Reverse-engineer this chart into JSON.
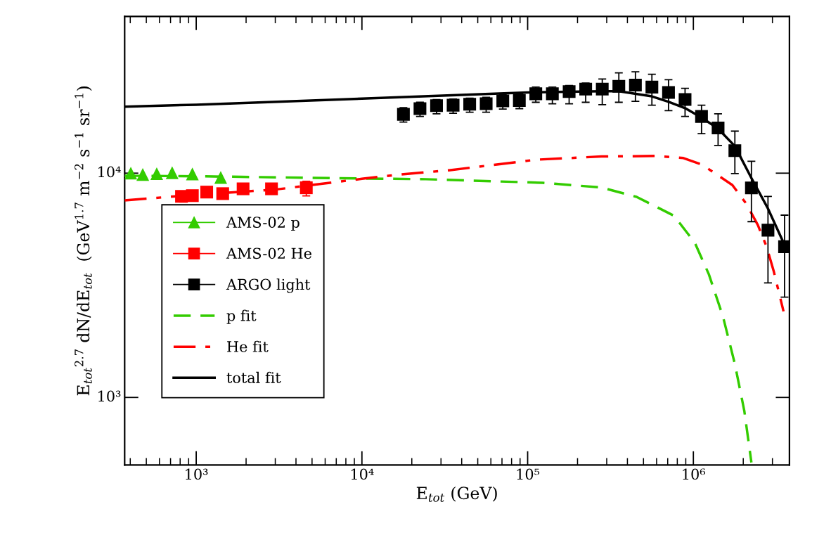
{
  "chart_data": {
    "type": "scatter",
    "xlabel": "E$_{tot}$ (GeV)",
    "ylabel": "E$_{tot}$$^{2.7}$ dN/dE$_{tot}$  (GeV$^{1.7}$ m$^{−2}$ s$^{−1}$ sr$^{−1}$)",
    "log": "xy",
    "xlim": [
      370,
      3800000
    ],
    "ylim": [
      500,
      50000
    ],
    "xticks": [
      {
        "value": 1000,
        "label": "10³"
      },
      {
        "value": 10000,
        "label": "10⁴"
      },
      {
        "value": 100000,
        "label": "10⁵"
      },
      {
        "value": 1000000,
        "label": "10⁶"
      }
    ],
    "yticks": [
      {
        "value": 1000,
        "label": "10³"
      },
      {
        "value": 10000,
        "label": "10⁴"
      }
    ],
    "grid": false,
    "legend": "center left",
    "series": [
      {
        "name": "AMS-02 p",
        "marker": "triangle",
        "color": "#33cc00",
        "x": [
          403,
          476,
          578,
          716,
          948,
          1406
        ],
        "values": [
          10000,
          9870,
          9950,
          10050,
          9920,
          9570
        ]
      },
      {
        "name": "AMS-02 He",
        "marker": "square",
        "color": "#ff0000",
        "x": [
          815,
          948,
          1157,
          1445,
          1918,
          2847,
          4617
        ],
        "values": [
          7880,
          7940,
          8235,
          8105,
          8515,
          8515,
          8607
        ],
        "errors": [
          null,
          null,
          null,
          null,
          null,
          null,
          [
            7920,
            9200
          ]
        ]
      },
      {
        "name": "ARGO light",
        "marker": "square",
        "color": "#000000",
        "x": [
          17800,
          22400,
          28200,
          35500,
          44700,
          56200,
          70800,
          89100,
          112000,
          141000,
          178000,
          224000,
          282000,
          355000,
          447000,
          562000,
          708000,
          891000,
          1120000,
          1410000,
          1780000,
          2240000,
          2820000,
          3550000
        ],
        "values": [
          18300,
          19400,
          20000,
          20100,
          20300,
          20400,
          21000,
          21100,
          22600,
          22600,
          23100,
          23700,
          23700,
          24400,
          24700,
          24200,
          22900,
          21300,
          17900,
          15900,
          12600,
          8600,
          5570,
          4700
        ],
        "errors": [
          [
            16900,
            19600
          ],
          [
            17900,
            20700
          ],
          [
            18400,
            21300
          ],
          [
            18500,
            21400
          ],
          [
            18700,
            21600
          ],
          [
            18700,
            21800
          ],
          [
            19300,
            22400
          ],
          [
            19400,
            22500
          ],
          [
            20700,
            24200
          ],
          [
            20400,
            24200
          ],
          [
            20400,
            24600
          ],
          [
            20700,
            25200
          ],
          [
            20200,
            26300
          ],
          [
            20700,
            28000
          ],
          [
            20900,
            28300
          ],
          [
            20100,
            27600
          ],
          [
            19000,
            26100
          ],
          [
            17900,
            23900
          ],
          [
            15000,
            20100
          ],
          [
            13300,
            18400
          ],
          [
            9960,
            15400
          ],
          [
            6080,
            11300
          ],
          [
            3240,
            7880
          ],
          [
            2800,
            6500
          ]
        ]
      },
      {
        "name": "p fit",
        "type": "line",
        "line_style": "dashed",
        "color": "#33cc00",
        "x": [
          370,
          1000,
          10000,
          24300,
          123000,
          279000,
          454000,
          764000,
          1020000,
          1240000,
          1510000,
          1780000,
          2030000,
          2240000
        ],
        "values": [
          9740,
          9690,
          9470,
          9400,
          9060,
          8630,
          7840,
          6460,
          4900,
          3540,
          2290,
          1410,
          870,
          513
        ]
      },
      {
        "name": "He fit",
        "type": "line",
        "line_style": "dashdot",
        "color": "#ff0000",
        "x": [
          370,
          1000,
          3000,
          10000,
          17100,
          33500,
          112000,
          279000,
          589000,
          871000,
          1130000,
          1420000,
          1720000,
          2090000,
          2450000,
          2760000,
          3050000,
          3500000
        ],
        "values": [
          7560,
          8020,
          8450,
          9440,
          9870,
          10300,
          11480,
          11870,
          11930,
          11680,
          10900,
          9740,
          8850,
          7290,
          5870,
          4720,
          3670,
          2420
        ]
      },
      {
        "name": "total fit",
        "type": "line",
        "line_style": "solid",
        "color": "#000000",
        "x": [
          370,
          1000,
          10000,
          100000,
          280000,
          355000,
          562000,
          710000,
          891000,
          1120000,
          1410000,
          1780000,
          2240000,
          2820000,
          3500000
        ],
        "values": [
          19800,
          20200,
          21500,
          22900,
          23200,
          23200,
          22000,
          20800,
          19500,
          17700,
          15800,
          13200,
          9510,
          6950,
          4900
        ]
      }
    ]
  }
}
